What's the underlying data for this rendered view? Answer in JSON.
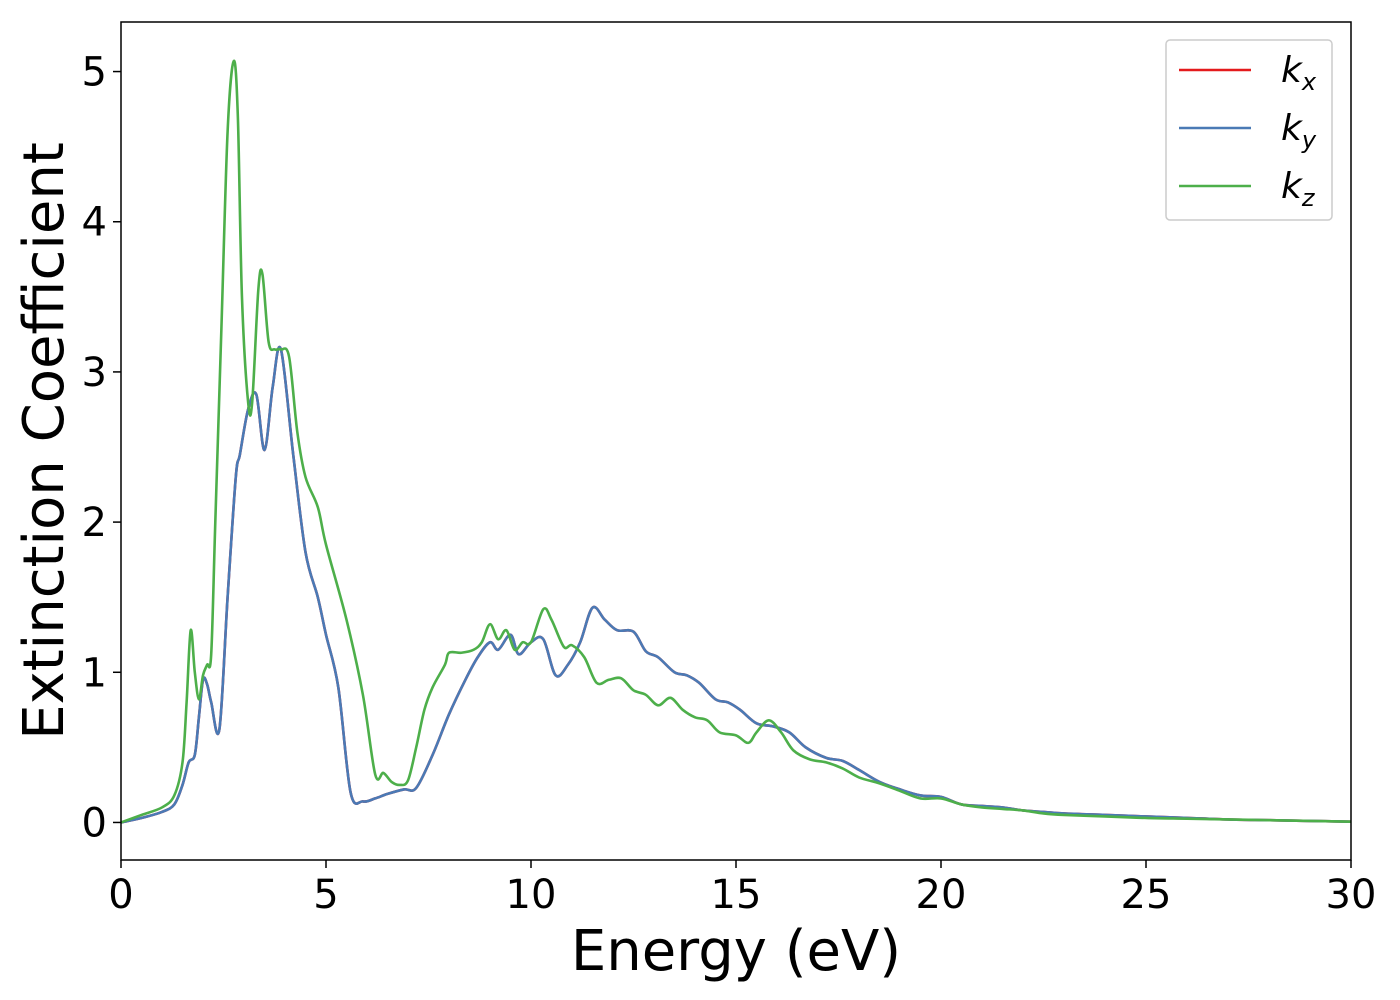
{
  "chart_data": {
    "type": "line",
    "xlabel": "Energy (eV)",
    "ylabel": "Extinction Coefficient",
    "xlim": [
      0,
      30
    ],
    "ylim": [
      -0.25,
      5.33
    ],
    "xticks": [
      0,
      5,
      10,
      15,
      20,
      25,
      30
    ],
    "yticks": [
      0,
      1,
      2,
      3,
      4,
      5
    ],
    "grid": false,
    "legend_position": "top-right",
    "colors": {
      "k_x": "#e41a1c",
      "k_y": "#4a7ab5",
      "k_z": "#4daf4a"
    },
    "series": [
      {
        "name": "k_x",
        "name_base": "k",
        "name_sub": "x",
        "color": "#e41a1c",
        "x": [
          0,
          0.5,
          1.0,
          1.3,
          1.5,
          1.65,
          1.8,
          1.9,
          2.0,
          2.1,
          2.2,
          2.4,
          2.6,
          2.8,
          2.9,
          3.1,
          3.3,
          3.5,
          3.7,
          3.9,
          4.2,
          4.5,
          4.8,
          5.0,
          5.3,
          5.6,
          5.9,
          6.2,
          6.5,
          6.9,
          7.2,
          7.6,
          8.0,
          8.4,
          8.7,
          9.0,
          9.2,
          9.5,
          9.7,
          10.0,
          10.3,
          10.6,
          10.9,
          11.2,
          11.5,
          11.8,
          12.1,
          12.5,
          12.8,
          13.1,
          13.5,
          13.8,
          14.1,
          14.5,
          14.8,
          15.1,
          15.5,
          15.9,
          16.3,
          16.7,
          17.2,
          17.6,
          18.0,
          18.5,
          19.0,
          19.5,
          20.0,
          20.5,
          21.0,
          21.5,
          22.0,
          22.5,
          23.0,
          24.0,
          25.0,
          26.0,
          27.0,
          28.0,
          29.0,
          30.0
        ],
        "values": [
          0,
          0.03,
          0.07,
          0.12,
          0.25,
          0.4,
          0.45,
          0.7,
          0.95,
          0.92,
          0.8,
          0.62,
          1.5,
          2.3,
          2.45,
          2.75,
          2.85,
          2.48,
          2.9,
          3.15,
          2.45,
          1.8,
          1.5,
          1.25,
          0.9,
          0.2,
          0.14,
          0.16,
          0.19,
          0.22,
          0.23,
          0.45,
          0.72,
          0.95,
          1.1,
          1.2,
          1.15,
          1.25,
          1.12,
          1.2,
          1.22,
          0.98,
          1.05,
          1.2,
          1.43,
          1.35,
          1.28,
          1.27,
          1.14,
          1.1,
          1.0,
          0.98,
          0.93,
          0.82,
          0.8,
          0.75,
          0.66,
          0.64,
          0.6,
          0.5,
          0.43,
          0.41,
          0.35,
          0.27,
          0.22,
          0.18,
          0.17,
          0.12,
          0.11,
          0.1,
          0.08,
          0.07,
          0.06,
          0.05,
          0.04,
          0.03,
          0.02,
          0.015,
          0.01,
          0.005
        ]
      },
      {
        "name": "k_y",
        "name_base": "k",
        "name_sub": "y",
        "color": "#4a7ab5",
        "x": [
          0,
          0.5,
          1.0,
          1.3,
          1.5,
          1.65,
          1.8,
          1.9,
          2.0,
          2.1,
          2.2,
          2.4,
          2.6,
          2.8,
          2.9,
          3.1,
          3.3,
          3.5,
          3.7,
          3.9,
          4.2,
          4.5,
          4.8,
          5.0,
          5.3,
          5.6,
          5.9,
          6.2,
          6.5,
          6.9,
          7.2,
          7.6,
          8.0,
          8.4,
          8.7,
          9.0,
          9.2,
          9.5,
          9.7,
          10.0,
          10.3,
          10.6,
          10.9,
          11.2,
          11.5,
          11.8,
          12.1,
          12.5,
          12.8,
          13.1,
          13.5,
          13.8,
          14.1,
          14.5,
          14.8,
          15.1,
          15.5,
          15.9,
          16.3,
          16.7,
          17.2,
          17.6,
          18.0,
          18.5,
          19.0,
          19.5,
          20.0,
          20.5,
          21.0,
          21.5,
          22.0,
          22.5,
          23.0,
          24.0,
          25.0,
          26.0,
          27.0,
          28.0,
          29.0,
          30.0
        ],
        "values": [
          0,
          0.03,
          0.07,
          0.12,
          0.25,
          0.4,
          0.45,
          0.7,
          0.95,
          0.92,
          0.8,
          0.62,
          1.5,
          2.3,
          2.45,
          2.75,
          2.85,
          2.48,
          2.9,
          3.15,
          2.45,
          1.8,
          1.5,
          1.25,
          0.9,
          0.2,
          0.14,
          0.16,
          0.19,
          0.22,
          0.23,
          0.45,
          0.72,
          0.95,
          1.1,
          1.2,
          1.15,
          1.25,
          1.12,
          1.2,
          1.22,
          0.98,
          1.05,
          1.2,
          1.43,
          1.35,
          1.28,
          1.27,
          1.14,
          1.1,
          1.0,
          0.98,
          0.93,
          0.82,
          0.8,
          0.75,
          0.66,
          0.64,
          0.6,
          0.5,
          0.43,
          0.41,
          0.35,
          0.27,
          0.22,
          0.18,
          0.17,
          0.12,
          0.11,
          0.1,
          0.08,
          0.07,
          0.06,
          0.05,
          0.04,
          0.03,
          0.02,
          0.015,
          0.01,
          0.005
        ]
      },
      {
        "name": "k_z",
        "name_base": "k",
        "name_sub": "z",
        "color": "#4daf4a",
        "x": [
          0,
          0.5,
          1.0,
          1.3,
          1.5,
          1.6,
          1.7,
          1.8,
          1.9,
          2.0,
          2.1,
          2.2,
          2.3,
          2.45,
          2.6,
          2.75,
          2.85,
          2.95,
          3.1,
          3.2,
          3.35,
          3.45,
          3.6,
          3.75,
          3.9,
          4.1,
          4.3,
          4.5,
          4.8,
          5.0,
          5.5,
          5.9,
          6.2,
          6.4,
          6.6,
          6.8,
          7.0,
          7.2,
          7.4,
          7.6,
          7.9,
          8.0,
          8.3,
          8.6,
          8.8,
          9.0,
          9.2,
          9.4,
          9.6,
          9.8,
          10.0,
          10.3,
          10.5,
          10.8,
          11.0,
          11.3,
          11.6,
          11.9,
          12.2,
          12.5,
          12.8,
          13.1,
          13.4,
          13.7,
          14.0,
          14.3,
          14.6,
          15.0,
          15.3,
          15.5,
          15.8,
          16.1,
          16.4,
          16.8,
          17.2,
          17.6,
          18.0,
          18.5,
          19.0,
          19.5,
          20.0,
          20.5,
          21.0,
          21.5,
          22.0,
          22.5,
          23.0,
          24.0,
          25.0,
          26.0,
          27.0,
          28.0,
          29.0,
          30.0
        ],
        "values": [
          0,
          0.05,
          0.1,
          0.18,
          0.4,
          0.8,
          1.28,
          1.0,
          0.82,
          0.98,
          1.05,
          1.12,
          2.0,
          3.3,
          4.6,
          5.07,
          4.7,
          3.5,
          2.8,
          2.8,
          3.55,
          3.65,
          3.2,
          3.15,
          3.15,
          3.1,
          2.6,
          2.3,
          2.1,
          1.85,
          1.35,
          0.85,
          0.32,
          0.33,
          0.27,
          0.25,
          0.28,
          0.5,
          0.75,
          0.9,
          1.05,
          1.13,
          1.13,
          1.15,
          1.2,
          1.32,
          1.22,
          1.28,
          1.15,
          1.2,
          1.2,
          1.42,
          1.35,
          1.17,
          1.18,
          1.1,
          0.93,
          0.95,
          0.96,
          0.88,
          0.85,
          0.78,
          0.83,
          0.75,
          0.7,
          0.68,
          0.6,
          0.58,
          0.53,
          0.6,
          0.68,
          0.6,
          0.48,
          0.42,
          0.4,
          0.36,
          0.3,
          0.26,
          0.21,
          0.16,
          0.16,
          0.12,
          0.1,
          0.09,
          0.08,
          0.06,
          0.05,
          0.04,
          0.03,
          0.025,
          0.02,
          0.015,
          0.01,
          0.005
        ]
      }
    ]
  }
}
